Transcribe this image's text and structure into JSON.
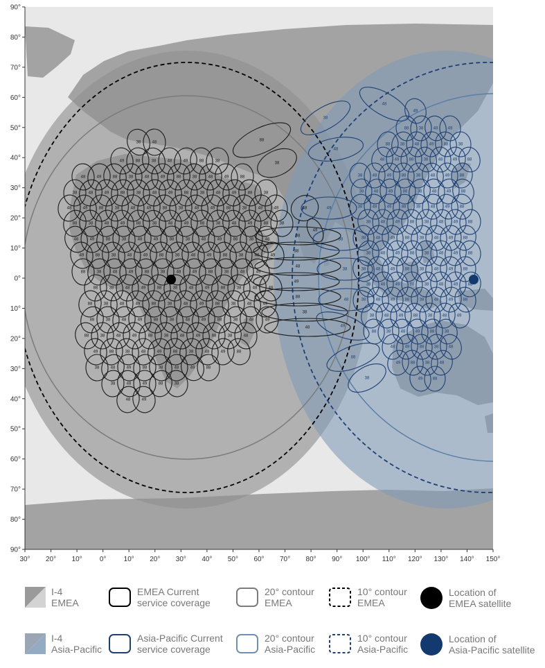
{
  "map": {
    "y_axis_labels": [
      "90°",
      "80°",
      "70°",
      "60°",
      "50°",
      "40°",
      "30°",
      "20°",
      "10°",
      "0°",
      "10°",
      "20°",
      "30°",
      "40°",
      "50°",
      "60°",
      "70°",
      "80°",
      "90°"
    ],
    "x_axis_labels": [
      "30°",
      "20°",
      "10°",
      "0°",
      "10°",
      "20°",
      "30°",
      "40°",
      "50°",
      "60°",
      "70°",
      "80°",
      "90°",
      "100°",
      "110°",
      "120°",
      "130°",
      "140°",
      "150°"
    ],
    "beam_label_values": [
      "38",
      "48",
      "49",
      "88"
    ],
    "colors": {
      "ocean": "#e8e8e8",
      "land": "#9a9a9a",
      "emea_region": "#9e9e9e",
      "apac_region": "#8da6be",
      "emea_beam": "#1a1a1a",
      "apac_beam": "#1e3f73",
      "emea_satellite": "#000000",
      "apac_satellite": "#123a6e"
    },
    "satellites": {
      "emea_longitude_deg": 25,
      "apac_longitude_deg": 143
    }
  },
  "legend": {
    "i4_emea": [
      "I-4",
      "EMEA"
    ],
    "emea_current": [
      "EMEA Current",
      "service coverage"
    ],
    "emea_20": [
      "20° contour",
      "EMEA"
    ],
    "emea_10": [
      "10° contour",
      "EMEA"
    ],
    "emea_sat": [
      "Location of",
      "EMEA satellite"
    ],
    "i4_apac": [
      "I-4",
      "Asia-Pacific"
    ],
    "apac_current": [
      "Asia-Pacific Current",
      "service coverage"
    ],
    "apac_20": [
      "20° contour",
      "Asia-Pacific"
    ],
    "apac_10": [
      "10° contour",
      "Asia-Pacific"
    ],
    "apac_sat": [
      "Location of",
      "Asia-Pacific satellite"
    ]
  }
}
